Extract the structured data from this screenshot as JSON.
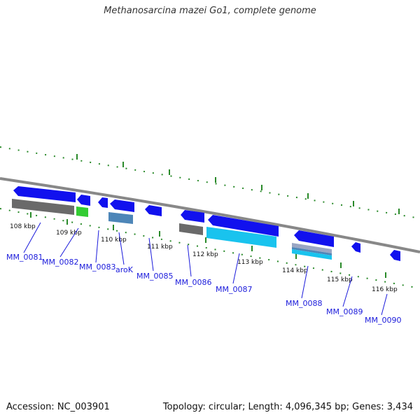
{
  "title": "Methanosarcina mazei Go1, complete genome",
  "footer": {
    "accession": "Accession: NC_003901",
    "summary": "Topology: circular; Length: 4,096,345 bp; Genes: 3,434"
  },
  "scale_labels": [
    "108 kbp",
    "109 kbp",
    "110 kbp",
    "111 kbp",
    "112 kbp",
    "113 kbp",
    "114 kbp",
    "115 kbp",
    "116 kbp"
  ],
  "genes": [
    {
      "id": "g0081",
      "name": "MM_0081"
    },
    {
      "id": "g0082",
      "name": "MM_0082"
    },
    {
      "id": "g0083",
      "name": "MM_0083"
    },
    {
      "id": "g0084",
      "name": "aroK"
    },
    {
      "id": "g0085",
      "name": "MM_0085"
    },
    {
      "id": "g0086",
      "name": "MM_0086"
    },
    {
      "id": "g0087",
      "name": "MM_0087"
    },
    {
      "id": "g0088",
      "name": "MM_0088"
    },
    {
      "id": "g0089",
      "name": "MM_0089"
    },
    {
      "id": "g0090",
      "name": "MM_0090"
    }
  ],
  "colors": {
    "gene": "#1111ee",
    "backbone": "#888888",
    "ticks": "#2a8a2a",
    "cds_grey": "#6a6a6a",
    "cds_green": "#33cc33",
    "cds_steelblue": "#4d86b8",
    "cds_cyan": "#19c3ee",
    "label": "#1a1adb"
  }
}
